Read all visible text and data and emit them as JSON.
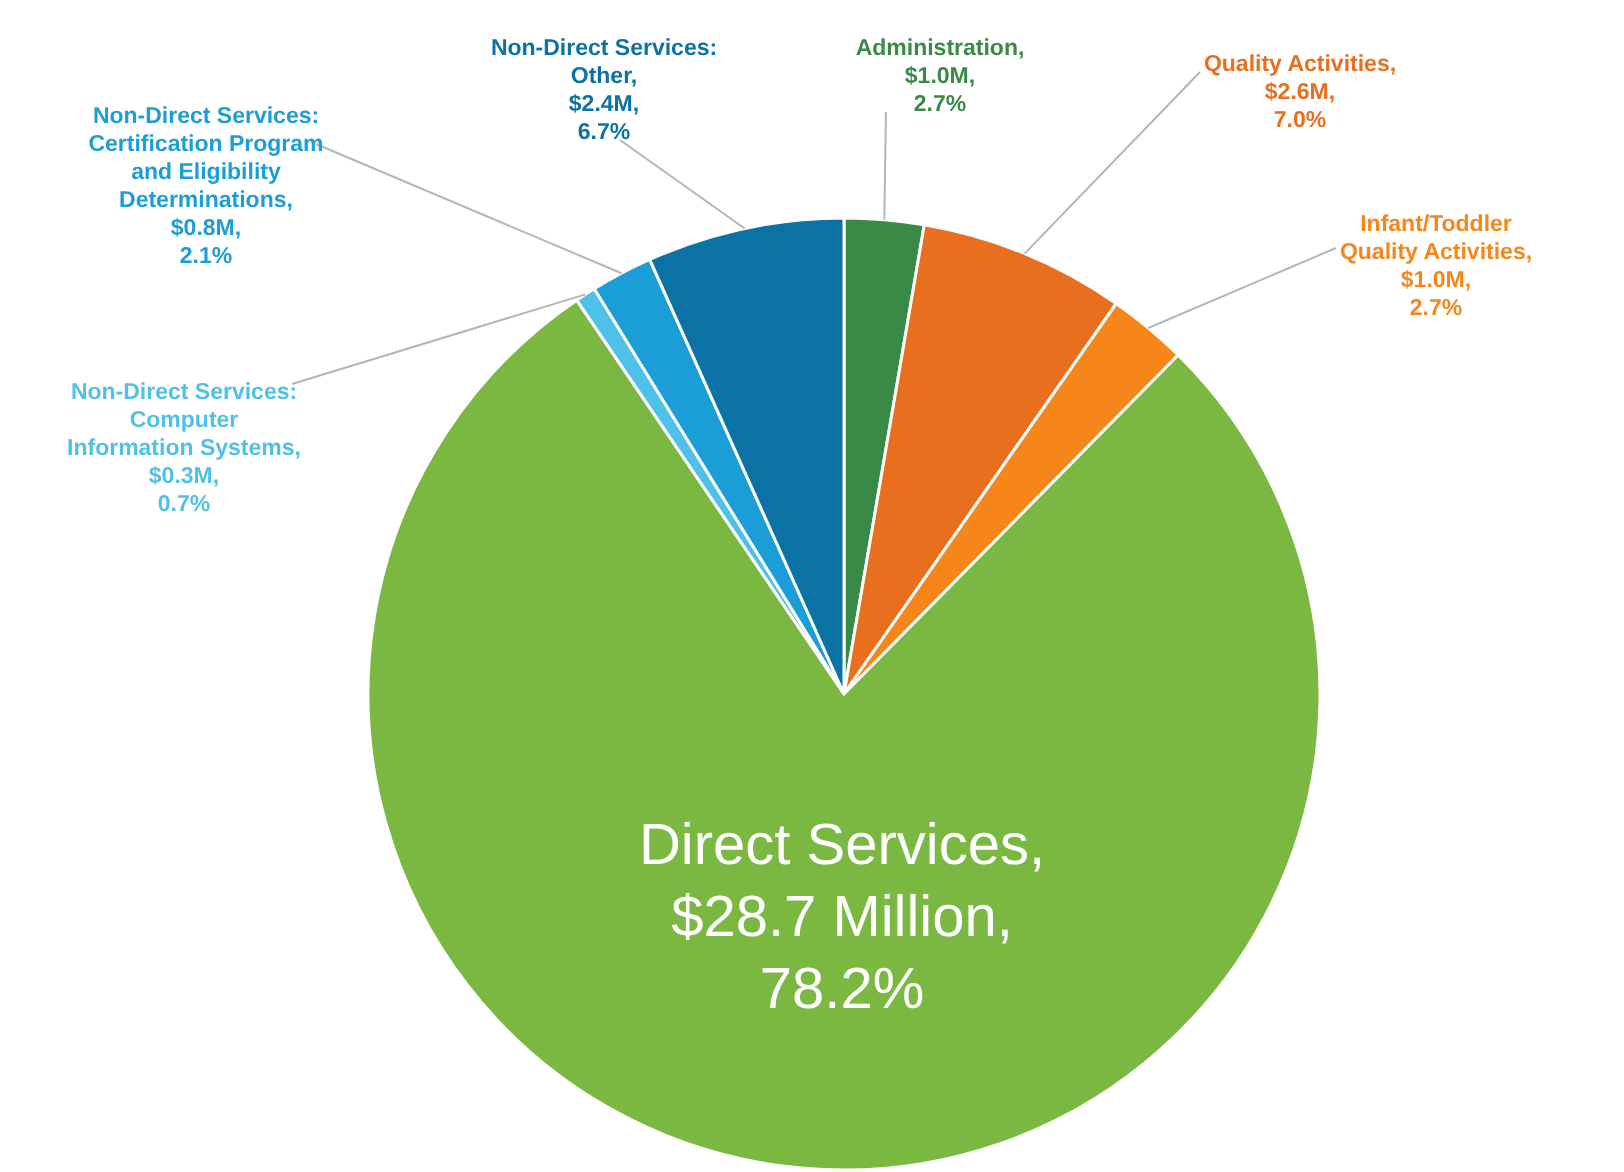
{
  "chart_data": {
    "type": "pie",
    "categories": [
      "Administration",
      "Quality Activities",
      "Infant/Toddler\nQuality Activities",
      "Direct Services",
      "Non-Direct Services:\nComputer\nInformation Systems",
      "Non-Direct Services:\nCertification Program\nand Eligibility\nDeterminations",
      "Non-Direct Services:\nOther"
    ],
    "values": [
      2.7,
      7.0,
      2.7,
      78.2,
      0.7,
      2.1,
      6.7
    ],
    "value_labels": [
      ", $1.0M, 2.7%",
      ", $2.6M, 7.0%",
      ", $1.0M, 2.7%",
      ", $28.7 Million, 78.2%",
      ", $0.3M, 0.7%",
      ", $0.8M, 2.1%",
      ", $2.4M, 6.7%"
    ],
    "colors": [
      "#3a8a47",
      "#e86f1e",
      "#f7861a",
      "#7ab842",
      "#4fc0e8",
      "#1b9ed8",
      "#0a72a4"
    ]
  }
}
